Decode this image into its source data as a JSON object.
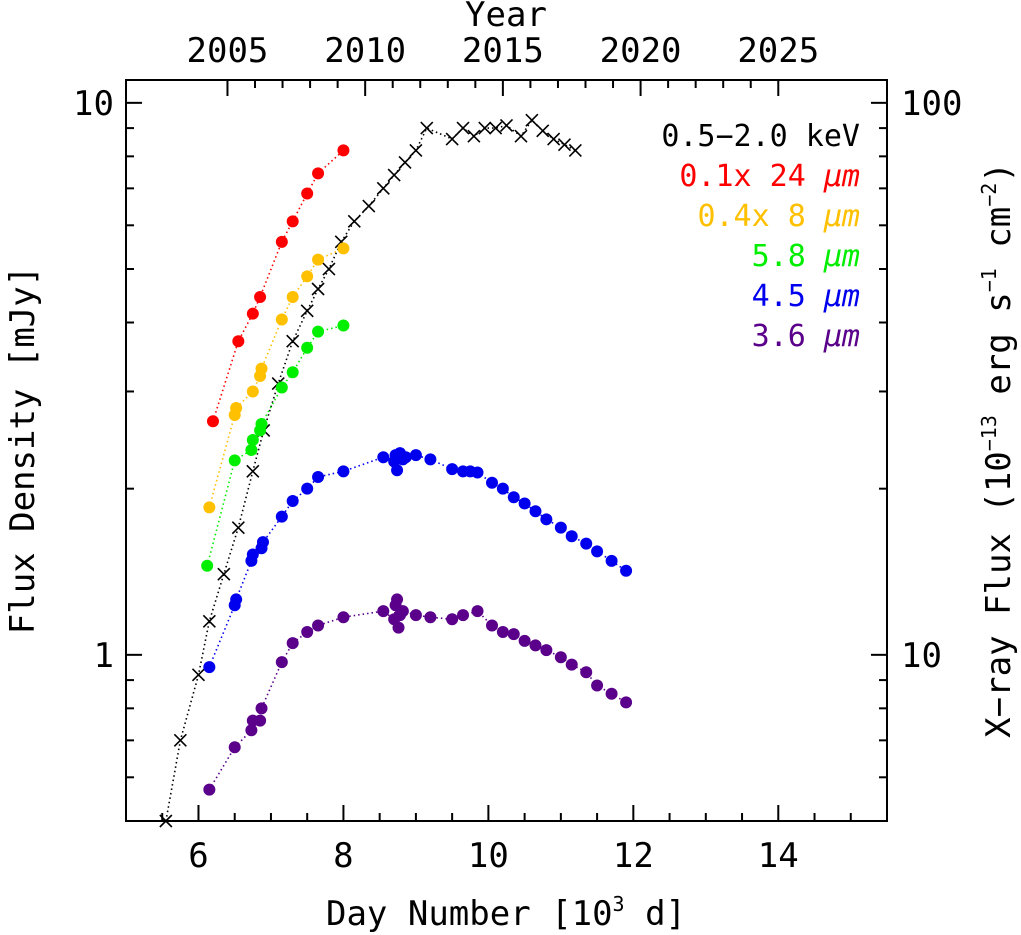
{
  "chart_data": {
    "type": "scatter",
    "title": "",
    "xlabel": "Day Number [10",
    "xlabel_sup": "3",
    "xlabel_end": " d]",
    "ylabel": "Flux Density [mJy]",
    "y2label_pre": "X−ray Flux (10",
    "y2label_sup1": "−13",
    "y2label_mid": " erg s",
    "y2label_sup2": "−1",
    "y2label_mid2": " cm",
    "y2label_sup3": "−2",
    "y2label_end": ")",
    "top_axis_label": "Year",
    "xlim": [
      5,
      15.5
    ],
    "ylim": [
      0.5,
      11
    ],
    "yscale": "log",
    "x_ticks": [
      "6",
      "8",
      "10",
      "12",
      "14"
    ],
    "x_tick_values": [
      6,
      8,
      10,
      12,
      14
    ],
    "y_ticks": [
      "1",
      "10"
    ],
    "y_tick_values": [
      1,
      10
    ],
    "y2_ticks": [
      "10",
      "100"
    ],
    "y2_tick_values": [
      1,
      10
    ],
    "top_ticks": [
      "2005",
      "2010",
      "2015",
      "2020",
      "2025"
    ],
    "top_tick_values": [
      6.4,
      8.3,
      10.2,
      12.1,
      14.0
    ],
    "series": [
      {
        "name": "0.5−2.0 keV",
        "legend_text": "0.5−2.0 keV",
        "legend_unit": "",
        "color": "#000000",
        "marker": "x",
        "x": [
          5.55,
          5.75,
          6.0,
          6.15,
          6.35,
          6.55,
          6.75,
          6.9,
          7.1,
          7.3,
          7.5,
          7.65,
          7.8,
          7.97,
          8.15,
          8.35,
          8.55,
          8.7,
          8.85,
          9.0,
          9.15,
          9.5,
          9.65,
          9.8,
          9.95,
          10.1,
          10.25,
          10.45,
          10.6,
          10.75,
          10.9,
          11.05,
          11.2
        ],
        "y": [
          0.5,
          0.7,
          0.92,
          1.15,
          1.4,
          1.7,
          2.15,
          2.55,
          3.1,
          3.7,
          4.2,
          4.6,
          5.0,
          5.6,
          6.1,
          6.5,
          7.0,
          7.4,
          7.8,
          8.2,
          9.0,
          8.6,
          9.0,
          8.7,
          9.0,
          9.0,
          9.1,
          8.7,
          9.3,
          8.9,
          8.6,
          8.4,
          8.2
        ]
      },
      {
        "name": "0.1x 24 μm",
        "legend_text": "0.1x 24 ",
        "legend_unit": "μm",
        "color": "#ff0000",
        "marker": "dot",
        "x": [
          6.2,
          6.55,
          6.75,
          6.85,
          7.15,
          7.3,
          7.5,
          7.65,
          8.0
        ],
        "y": [
          2.65,
          3.7,
          4.15,
          4.45,
          5.6,
          6.1,
          6.85,
          7.45,
          8.2
        ]
      },
      {
        "name": "0.4x 8 μm",
        "legend_text": "0.4x 8 ",
        "legend_unit": "μm",
        "color": "#ffc000",
        "marker": "dot",
        "x": [
          6.15,
          6.5,
          6.52,
          6.75,
          6.85,
          6.87,
          7.15,
          7.3,
          7.5,
          7.65,
          8.0
        ],
        "y": [
          1.85,
          2.72,
          2.8,
          3.0,
          3.2,
          3.3,
          4.05,
          4.45,
          4.85,
          5.2,
          5.45
        ]
      },
      {
        "name": "5.8 μm",
        "legend_text": "5.8 ",
        "legend_unit": "μm",
        "color": "#00ee00",
        "marker": "dot",
        "x": [
          6.12,
          6.5,
          6.73,
          6.75,
          6.85,
          6.87,
          7.15,
          7.3,
          7.5,
          7.65,
          8.0
        ],
        "y": [
          1.45,
          2.25,
          2.35,
          2.45,
          2.55,
          2.62,
          3.05,
          3.25,
          3.6,
          3.85,
          3.95
        ]
      },
      {
        "name": "4.5 μm",
        "legend_text": "4.5 ",
        "legend_unit": "μm",
        "color": "#0000ee",
        "marker": "dot",
        "x": [
          6.15,
          6.5,
          6.52,
          6.73,
          6.75,
          6.87,
          6.89,
          7.15,
          7.3,
          7.5,
          7.65,
          8.0,
          8.55,
          8.7,
          8.72,
          8.74,
          8.78,
          8.82,
          8.86,
          9.0,
          9.2,
          9.5,
          9.65,
          9.75,
          9.85,
          10.05,
          10.2,
          10.35,
          10.5,
          10.65,
          10.8,
          11.0,
          11.15,
          11.35,
          11.5,
          11.7,
          11.9
        ],
        "y": [
          0.95,
          1.23,
          1.26,
          1.48,
          1.52,
          1.56,
          1.6,
          1.78,
          1.9,
          2.0,
          2.1,
          2.15,
          2.28,
          2.24,
          2.3,
          2.16,
          2.32,
          2.26,
          2.28,
          2.3,
          2.26,
          2.17,
          2.15,
          2.15,
          2.14,
          2.05,
          2.0,
          1.93,
          1.88,
          1.82,
          1.76,
          1.7,
          1.64,
          1.59,
          1.54,
          1.48,
          1.42
        ]
      },
      {
        "name": "3.6 μm",
        "legend_text": "3.6 ",
        "legend_unit": "μm",
        "color": "#5a008a",
        "marker": "dot",
        "x": [
          6.15,
          6.5,
          6.73,
          6.75,
          6.85,
          6.87,
          7.15,
          7.3,
          7.5,
          7.65,
          8.0,
          8.55,
          8.7,
          8.72,
          8.74,
          8.76,
          8.78,
          8.82,
          9.0,
          9.2,
          9.5,
          9.65,
          9.85,
          10.05,
          10.2,
          10.35,
          10.5,
          10.65,
          10.8,
          11.0,
          11.15,
          11.35,
          11.5,
          11.7,
          11.9
        ],
        "y": [
          0.57,
          0.68,
          0.73,
          0.76,
          0.76,
          0.8,
          0.97,
          1.05,
          1.1,
          1.13,
          1.17,
          1.2,
          1.16,
          1.23,
          1.26,
          1.12,
          1.18,
          1.2,
          1.18,
          1.17,
          1.16,
          1.18,
          1.2,
          1.13,
          1.1,
          1.09,
          1.06,
          1.04,
          1.02,
          0.99,
          0.96,
          0.93,
          0.88,
          0.85,
          0.82
        ]
      }
    ]
  }
}
